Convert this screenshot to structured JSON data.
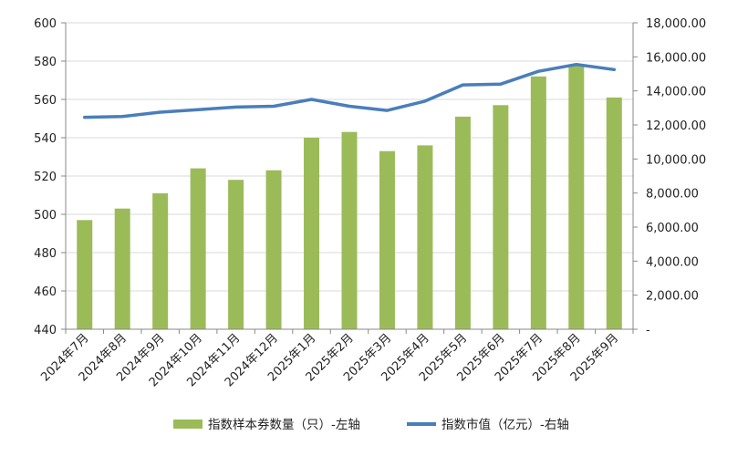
{
  "chart_data": {
    "type": "bar",
    "categories": [
      "2024年7月",
      "2024年8月",
      "2024年9月",
      "2024年10月",
      "2024年11月",
      "2024年12月",
      "2025年1月",
      "2025年2月",
      "2025年3月",
      "2025年4月",
      "2025年5月",
      "2025年6月",
      "2025年7月",
      "2025年8月",
      "2025年9月"
    ],
    "series": [
      {
        "name": "指数样本券数量（只）-左轴",
        "type": "bar",
        "axis": "left",
        "color": "#9bbb59",
        "values": [
          497,
          503,
          511,
          524,
          518,
          523,
          540,
          543,
          533,
          536,
          551,
          557,
          572,
          578,
          561
        ]
      },
      {
        "name": "指数市值（亿元）-右轴",
        "type": "line",
        "axis": "right",
        "color": "#4a7ebb",
        "values": [
          12450,
          12500,
          12750,
          12900,
          13050,
          13100,
          13500,
          13100,
          12850,
          13400,
          14350,
          14400,
          15150,
          15550,
          15250
        ]
      }
    ],
    "title": "",
    "xlabel": "",
    "ylabel_left": "",
    "ylabel_right": "",
    "ylim_left": [
      440,
      600
    ],
    "yticks_left": [
      "440",
      "460",
      "480",
      "500",
      "520",
      "540",
      "560",
      "580",
      "600"
    ],
    "ylim_right": [
      0,
      18000
    ],
    "yticks_right": [
      "-",
      "2,000.00",
      "4,000.00",
      "6,000.00",
      "8,000.00",
      "10,000.00",
      "12,000.00",
      "14,000.00",
      "16,000.00",
      "18,000.00"
    ],
    "grid": "horizontal",
    "legend_position": "bottom"
  }
}
